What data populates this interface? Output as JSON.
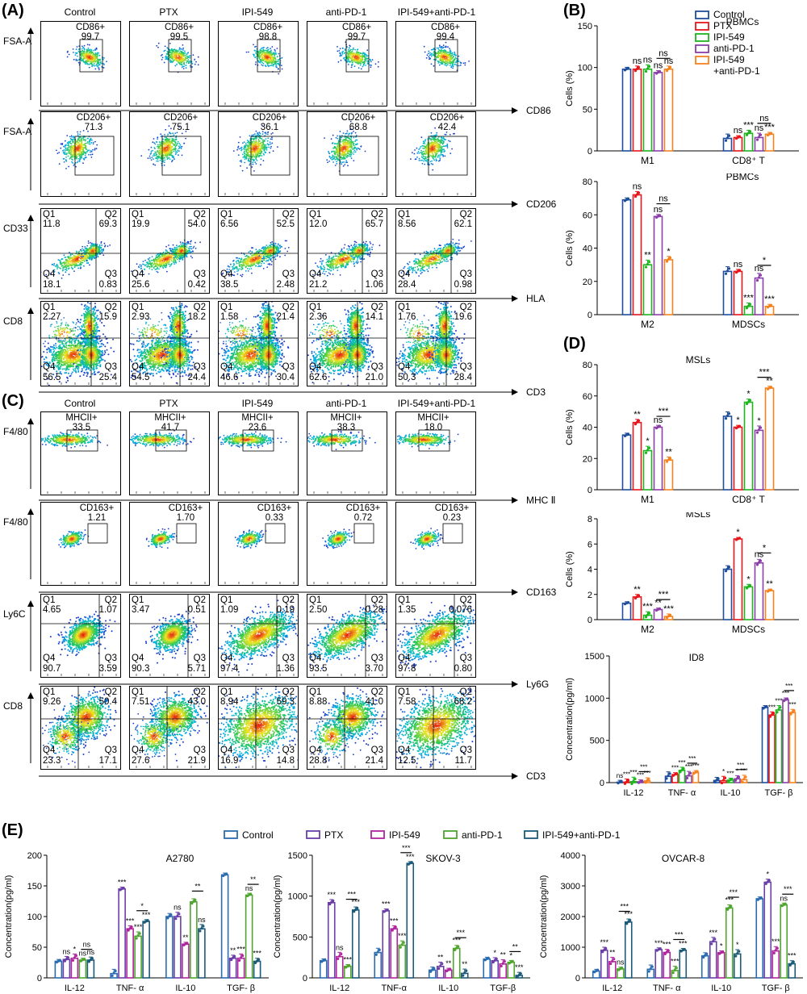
{
  "panels": {
    "A": "(A)",
    "B": "(B)",
    "C": "(C)",
    "D": "(D)",
    "E": "(E)"
  },
  "groups": [
    "Control",
    "PTX",
    "IPI-549",
    "anti-PD-1",
    "IPI-549+anti-PD-1"
  ],
  "colors": {
    "Control": "#1f4e9c",
    "PTX": "#e8161b",
    "IPI549": "#1eb51e",
    "antiPD1": "#8b3fa8",
    "combo": "#f58220",
    "E_Control": "#2b6cb0",
    "E_PTX": "#6a3fa8",
    "E_IPI549": "#b0259e",
    "E_antiPD1": "#4fa52e",
    "E_combo": "#1c5a7a"
  },
  "flowA": {
    "rows": [
      {
        "ylabel": "FSA-A",
        "xlabel": "CD86",
        "gate": "CD86+",
        "values": [
          "99.7",
          "99.5",
          "98.8",
          "99.7",
          "99.4"
        ]
      },
      {
        "ylabel": "FSA-A",
        "xlabel": "CD206",
        "gate": "CD206+",
        "values": [
          "71.3",
          "75.1",
          "36.1",
          "68.8",
          "42.4"
        ]
      },
      {
        "ylabel": "CD33",
        "xlabel": "HLA",
        "quad": true,
        "q": [
          [
            "11.8",
            "69.3",
            "0.83",
            "18.1"
          ],
          [
            "19.9",
            "54.0",
            "0.42",
            "25.6"
          ],
          [
            "6.56",
            "52.5",
            "2.48",
            "38.5"
          ],
          [
            "12.0",
            "65.7",
            "1.06",
            "21.2"
          ],
          [
            "8.56",
            "62.1",
            "0.98",
            "28.4"
          ]
        ]
      },
      {
        "ylabel": "CD8",
        "xlabel": "CD3",
        "quad": true,
        "q": [
          [
            "2.27",
            "15.9",
            "25.4",
            "56.5"
          ],
          [
            "2.93",
            "18.2",
            "24.4",
            "54.5"
          ],
          [
            "1.58",
            "21.4",
            "30.4",
            "46.6"
          ],
          [
            "2.36",
            "14.1",
            "21.0",
            "62.6"
          ],
          [
            "1.76",
            "19.6",
            "28.4",
            "50.3"
          ]
        ]
      }
    ]
  },
  "flowC": {
    "rows": [
      {
        "ylabel": "F4/80",
        "xlabel": "MHC Ⅱ",
        "gate": "MHCII+",
        "values": [
          "33.5",
          "41.7",
          "23.6",
          "38.3",
          "18.0"
        ]
      },
      {
        "ylabel": "F4/80",
        "xlabel": "CD163",
        "gate": "CD163+",
        "values": [
          "1.21",
          "1.70",
          "0.33",
          "0.72",
          "0.23"
        ]
      },
      {
        "ylabel": "Ly6C",
        "xlabel": "Ly6G",
        "quad": true,
        "q": [
          [
            "4.65",
            "1.07",
            "3.59",
            "90.7"
          ],
          [
            "3.47",
            "0.51",
            "5.71",
            "90.3"
          ],
          [
            "1.09",
            "0.19",
            "1.36",
            "97.4"
          ],
          [
            "2.50",
            "0.28",
            "3.70",
            "93.5"
          ],
          [
            "1.35",
            "0.076",
            "0.80",
            "97.8"
          ]
        ]
      },
      {
        "ylabel": "CD8",
        "xlabel": "CD3",
        "quad": true,
        "q": [
          [
            "9.26",
            "50.4",
            "17.1",
            "23.3"
          ],
          [
            "7.51",
            "43.0",
            "21.9",
            "27.6"
          ],
          [
            "8.94",
            "59.3",
            "14.8",
            "16.9"
          ],
          [
            "8.88",
            "41.0",
            "21.4",
            "28.8"
          ],
          [
            "7.58",
            "68.2",
            "11.7",
            "12.5"
          ]
        ]
      }
    ]
  },
  "quadNames": [
    "Q1",
    "Q2",
    "Q3",
    "Q4"
  ],
  "legendB": {
    "items": [
      "Control",
      "PTX",
      "IPI-549",
      "anti-PD-1",
      "IPI-549",
      "+anti-PD-1"
    ]
  },
  "legendE": {
    "items": [
      "Control",
      "PTX",
      "IPI-549",
      "anti-PD-1",
      "IPI-549+anti-PD-1"
    ]
  },
  "chart_data": [
    {
      "id": "B1",
      "type": "bar",
      "title": "PBMCs",
      "ylabel": "Cells (%)",
      "ylim": [
        0,
        150
      ],
      "yticks": [
        0,
        50,
        100,
        150
      ],
      "categories": [
        "M1",
        "CD8⁺ T"
      ],
      "series": [
        {
          "name": "Control",
          "values": [
            98,
            15
          ]
        },
        {
          "name": "PTX",
          "values": [
            98,
            16
          ]
        },
        {
          "name": "IPI-549",
          "values": [
            98,
            21
          ]
        },
        {
          "name": "anti-PD-1",
          "values": [
            94,
            16
          ]
        },
        {
          "name": "IPI-549 +anti-PD-1",
          "values": [
            98,
            20
          ]
        }
      ],
      "sig": [
        [
          "",
          "ns",
          "ns",
          "ns",
          "ns"
        ],
        [
          "",
          "ns",
          "***",
          "ns",
          "***"
        ]
      ],
      "brackets": [
        {
          "cat": 0,
          "from": 3,
          "to": 4,
          "label": "ns"
        },
        {
          "cat": 1,
          "from": 3,
          "to": 4,
          "label": "ns"
        }
      ]
    },
    {
      "id": "B2",
      "type": "bar",
      "title": "PBMCs",
      "ylabel": "Cells (%)",
      "ylim": [
        0,
        80
      ],
      "yticks": [
        0,
        20,
        40,
        60,
        80
      ],
      "categories": [
        "M2",
        "MDSCs"
      ],
      "series": [
        {
          "name": "Control",
          "values": [
            69,
            26
          ]
        },
        {
          "name": "PTX",
          "values": [
            72,
            26
          ]
        },
        {
          "name": "IPI-549",
          "values": [
            30,
            5
          ]
        },
        {
          "name": "anti-PD-1",
          "values": [
            59,
            22
          ]
        },
        {
          "name": "IPI-549 +anti-PD-1",
          "values": [
            33,
            5
          ]
        }
      ],
      "sig": [
        [
          "",
          "ns",
          "**",
          "ns",
          "*"
        ],
        [
          "",
          "ns",
          "***",
          "ns",
          "***"
        ]
      ],
      "brackets": [
        {
          "cat": 0,
          "from": 3,
          "to": 4,
          "label": "ns"
        },
        {
          "cat": 1,
          "from": 3,
          "to": 4,
          "label": "*"
        }
      ]
    },
    {
      "id": "D1",
      "type": "bar",
      "title": "MSLs",
      "ylabel": "Cells (%)",
      "ylim": [
        0,
        80
      ],
      "yticks": [
        0,
        20,
        40,
        60,
        80
      ],
      "categories": [
        "M1",
        "CD8⁺ T"
      ],
      "series": [
        {
          "name": "Control",
          "values": [
            35,
            47
          ]
        },
        {
          "name": "PTX",
          "values": [
            43,
            40
          ]
        },
        {
          "name": "IPI-549",
          "values": [
            25,
            56
          ]
        },
        {
          "name": "anti-PD-1",
          "values": [
            40,
            38
          ]
        },
        {
          "name": "IPI-549 +anti-PD-1",
          "values": [
            19,
            65
          ]
        }
      ],
      "sig": [
        [
          "",
          "**",
          "*",
          "ns",
          "**"
        ],
        [
          "",
          "*",
          "*",
          "*",
          "**"
        ]
      ],
      "brackets": [
        {
          "cat": 0,
          "from": 3,
          "to": 4,
          "label": "***"
        },
        {
          "cat": 1,
          "from": 3,
          "to": 4,
          "label": "***"
        }
      ]
    },
    {
      "id": "D2",
      "type": "bar",
      "title": "MSLs",
      "ylabel": "Cells (%)",
      "ylim": [
        0,
        8
      ],
      "yticks": [
        0,
        2,
        4,
        6,
        8
      ],
      "categories": [
        "M2",
        "MDSCs"
      ],
      "series": [
        {
          "name": "Control",
          "values": [
            1.3,
            4.0
          ]
        },
        {
          "name": "PTX",
          "values": [
            1.8,
            6.4
          ]
        },
        {
          "name": "IPI-549",
          "values": [
            0.35,
            2.6
          ]
        },
        {
          "name": "anti-PD-1",
          "values": [
            0.8,
            4.5
          ]
        },
        {
          "name": "IPI-549 +anti-PD-1",
          "values": [
            0.25,
            2.3
          ]
        }
      ],
      "sig": [
        [
          "",
          "**",
          "***",
          "**",
          "***"
        ],
        [
          "",
          "*",
          "*",
          "ns",
          "**"
        ]
      ],
      "brackets": [
        {
          "cat": 0,
          "from": 3,
          "to": 4,
          "label": "***"
        },
        {
          "cat": 1,
          "from": 3,
          "to": 4,
          "label": "*"
        }
      ]
    },
    {
      "id": "D3",
      "type": "bar",
      "title": "ID8",
      "ylabel": "Concentration(pg/ml)",
      "ylim": [
        0,
        1500
      ],
      "yticks": [
        0,
        500,
        1000,
        1500
      ],
      "categories": [
        "IL-12",
        "TNF- α",
        "IL-10",
        "TGF- β"
      ],
      "series": [
        {
          "name": "Control",
          "values": [
            5,
            75,
            25,
            890
          ]
        },
        {
          "name": "PTX",
          "values": [
            6,
            95,
            22,
            800
          ]
        },
        {
          "name": "IPI-549",
          "values": [
            12,
            145,
            30,
            860
          ]
        },
        {
          "name": "anti-PD-1",
          "values": [
            10,
            80,
            45,
            980
          ]
        },
        {
          "name": "IPI-549+anti-PD-1",
          "values": [
            20,
            120,
            35,
            830
          ]
        }
      ],
      "sig": [
        [
          "ns",
          "***",
          "***",
          "***",
          "***"
        ],
        [
          "",
          "***",
          "***",
          "***",
          "***"
        ],
        [
          "",
          "*",
          "***",
          "*",
          "***"
        ],
        [
          "",
          "***",
          "***",
          "***",
          "***"
        ]
      ],
      "brackets": [
        {
          "cat": 0,
          "from": 3,
          "to": 4,
          "label": "***"
        },
        {
          "cat": 1,
          "from": 3,
          "to": 4,
          "label": "***"
        },
        {
          "cat": 2,
          "from": 3,
          "to": 4,
          "label": "***"
        },
        {
          "cat": 3,
          "from": 3,
          "to": 4,
          "label": "***"
        }
      ]
    },
    {
      "id": "E1",
      "type": "bar",
      "title": "A2780",
      "ylabel": "Concentration(pg/ml)",
      "ylim": [
        0,
        200
      ],
      "yticks": [
        0,
        50,
        100,
        150,
        200
      ],
      "categories": [
        "IL-12",
        "TNF- α",
        "IL-10",
        "TGF- β"
      ],
      "series": [
        {
          "name": "Control",
          "values": [
            27,
            7,
            100,
            168
          ]
        },
        {
          "name": "PTX",
          "values": [
            30,
            145,
            100,
            32
          ]
        },
        {
          "name": "IPI-549",
          "values": [
            32,
            80,
            55,
            32
          ]
        },
        {
          "name": "anti-PD-1",
          "values": [
            29,
            68,
            124,
            135
          ]
        },
        {
          "name": "IPI-549+anti-PD-1",
          "values": [
            29,
            92,
            80,
            27
          ]
        }
      ],
      "sig": [
        [
          "",
          "ns",
          "*",
          "ns",
          "ns"
        ],
        [
          "",
          "***",
          "***",
          "***",
          "***"
        ],
        [
          "",
          "ns",
          "**",
          "",
          "ns"
        ],
        [
          "",
          "**",
          "***",
          "ns",
          "***"
        ]
      ],
      "brackets": [
        {
          "cat": 0,
          "from": 3,
          "to": 4,
          "label": "ns"
        },
        {
          "cat": 1,
          "from": 3,
          "to": 4,
          "label": "*"
        },
        {
          "cat": 2,
          "from": 3,
          "to": 4,
          "label": "**"
        },
        {
          "cat": 3,
          "from": 3,
          "to": 4,
          "label": "**"
        }
      ]
    },
    {
      "id": "E2",
      "type": "bar",
      "title": "SKOV-3",
      "ylabel": "Concentration(pg/ml)",
      "ylim": [
        0,
        1500
      ],
      "yticks": [
        0,
        500,
        1000,
        1500
      ],
      "categories": [
        "IL-12",
        "TNF-α",
        "IL-10",
        "TGF-β"
      ],
      "series": [
        {
          "name": "Control",
          "values": [
            210,
            310,
            95,
            230
          ]
        },
        {
          "name": "PTX",
          "values": [
            920,
            820,
            140,
            210
          ]
        },
        {
          "name": "IPI-549",
          "values": [
            260,
            600,
            95,
            170
          ]
        },
        {
          "name": "anti-PD-1",
          "values": [
            140,
            400,
            360,
            190
          ]
        },
        {
          "name": "IPI-549+anti-PD-1",
          "values": [
            830,
            1400,
            55,
            30
          ]
        }
      ],
      "sig": [
        [
          "",
          "***",
          "ns",
          "***",
          "***"
        ],
        [
          "",
          "***",
          "***",
          "***",
          "***"
        ],
        [
          "",
          "**",
          "**",
          "***",
          "**"
        ],
        [
          "",
          "*",
          "**",
          "*",
          "***"
        ]
      ],
      "brackets": [
        {
          "cat": 0,
          "from": 3,
          "to": 4,
          "label": "***"
        },
        {
          "cat": 1,
          "from": 3,
          "to": 4,
          "label": "***"
        },
        {
          "cat": 2,
          "from": 3,
          "to": 4,
          "label": "***"
        },
        {
          "cat": 3,
          "from": 3,
          "to": 4,
          "label": "**"
        }
      ]
    },
    {
      "id": "E3",
      "type": "bar",
      "title": "OVCAR-8",
      "ylabel": "Concentration(pg/ml)",
      "ylim": [
        0,
        4000
      ],
      "yticks": [
        0,
        1000,
        2000,
        3000,
        4000
      ],
      "categories": [
        "IL-12",
        "TNF- α",
        "IL-10",
        "TGF- β"
      ],
      "series": [
        {
          "name": "Control",
          "values": [
            220,
            280,
            720,
            2580
          ]
        },
        {
          "name": "PTX",
          "values": [
            900,
            920,
            1180,
            3120
          ]
        },
        {
          "name": "IPI-549",
          "values": [
            530,
            830,
            820,
            880
          ]
        },
        {
          "name": "anti-PD-1",
          "values": [
            290,
            240,
            2280,
            2380
          ]
        },
        {
          "name": "IPI-549+anti-PD-1",
          "values": [
            1820,
            900,
            780,
            460
          ]
        }
      ],
      "sig": [
        [
          "",
          "***",
          "**",
          "ns",
          "***"
        ],
        [
          "",
          "***",
          "***",
          "***",
          "***"
        ],
        [
          "",
          "***",
          "*",
          "***",
          "*"
        ],
        [
          "",
          "*",
          "***",
          "ns",
          "***"
        ]
      ],
      "brackets": [
        {
          "cat": 0,
          "from": 3,
          "to": 4,
          "label": "***"
        },
        {
          "cat": 1,
          "from": 3,
          "to": 4,
          "label": "***"
        },
        {
          "cat": 2,
          "from": 3,
          "to": 4,
          "label": "***"
        },
        {
          "cat": 3,
          "from": 3,
          "to": 4,
          "label": "***"
        }
      ]
    }
  ]
}
